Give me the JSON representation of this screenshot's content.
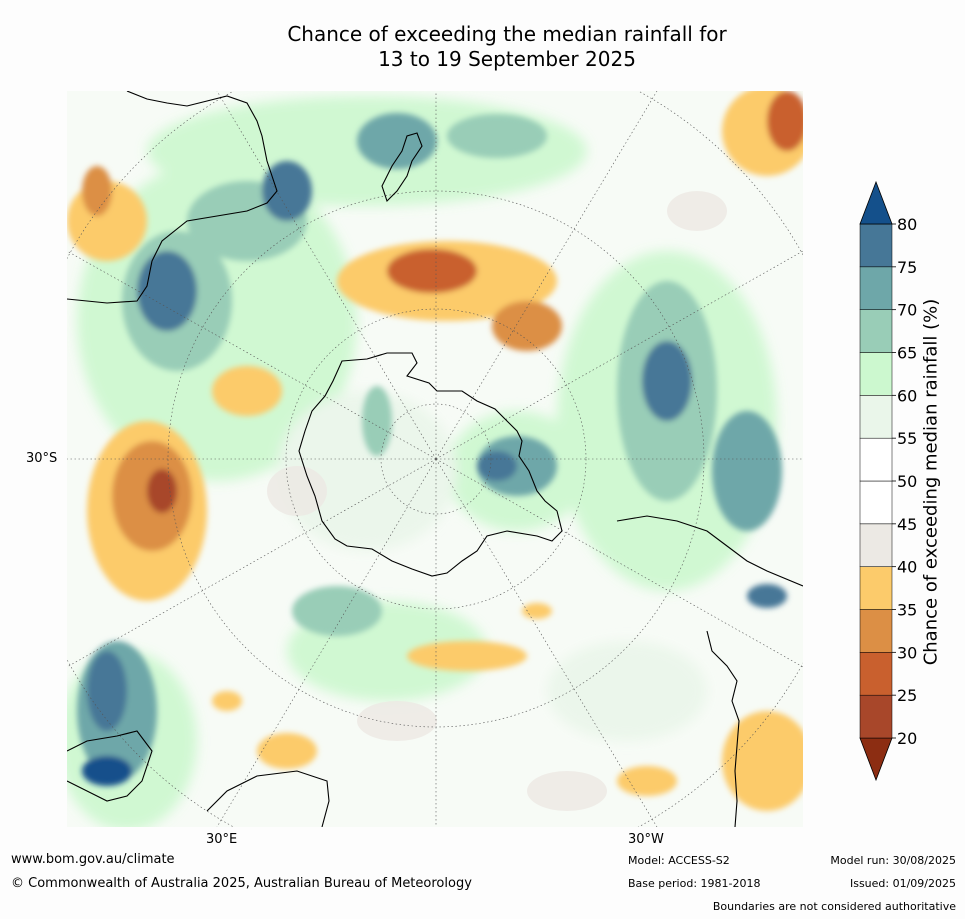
{
  "title_line1": "Chance of exceeding the median rainfall for",
  "title_line2": "13 to 19 September 2025",
  "map": {
    "projection": "south polar stereographic",
    "latitude_labels": [
      "30°S"
    ],
    "longitude_labels": [
      "30°E",
      "30°W"
    ]
  },
  "colorbar": {
    "label": "Chance of exceeding median rainfall (%)",
    "ticks": [
      "20",
      "25",
      "30",
      "35",
      "40",
      "45",
      "50",
      "55",
      "60",
      "65",
      "70",
      "75",
      "80"
    ],
    "bins": [
      {
        "color": "#8c2d12"
      },
      {
        "color": "#a8472a"
      },
      {
        "color": "#c9602e"
      },
      {
        "color": "#dc8f45"
      },
      {
        "color": "#fccb6b"
      },
      {
        "color": "#ece9e4"
      },
      {
        "color": "#ffffff"
      },
      {
        "color": "#ffffff"
      },
      {
        "color": "#eaf6ea"
      },
      {
        "color": "#ccf8cf"
      },
      {
        "color": "#99cdb7"
      },
      {
        "color": "#6ea7a9"
      },
      {
        "color": "#467797"
      },
      {
        "color": "#14508b"
      }
    ]
  },
  "footer": {
    "website": "www.bom.gov.au/climate",
    "copyright": "© Commonwealth of Australia 2025, Australian Bureau of Meteorology",
    "model": "Model: ACCESS-S2",
    "base_period": "Base period: 1981-2018",
    "model_run": "Model run: 30/08/2025",
    "issued": "Issued: 01/09/2025",
    "disclaimer": "Boundaries are not considered authoritative"
  }
}
